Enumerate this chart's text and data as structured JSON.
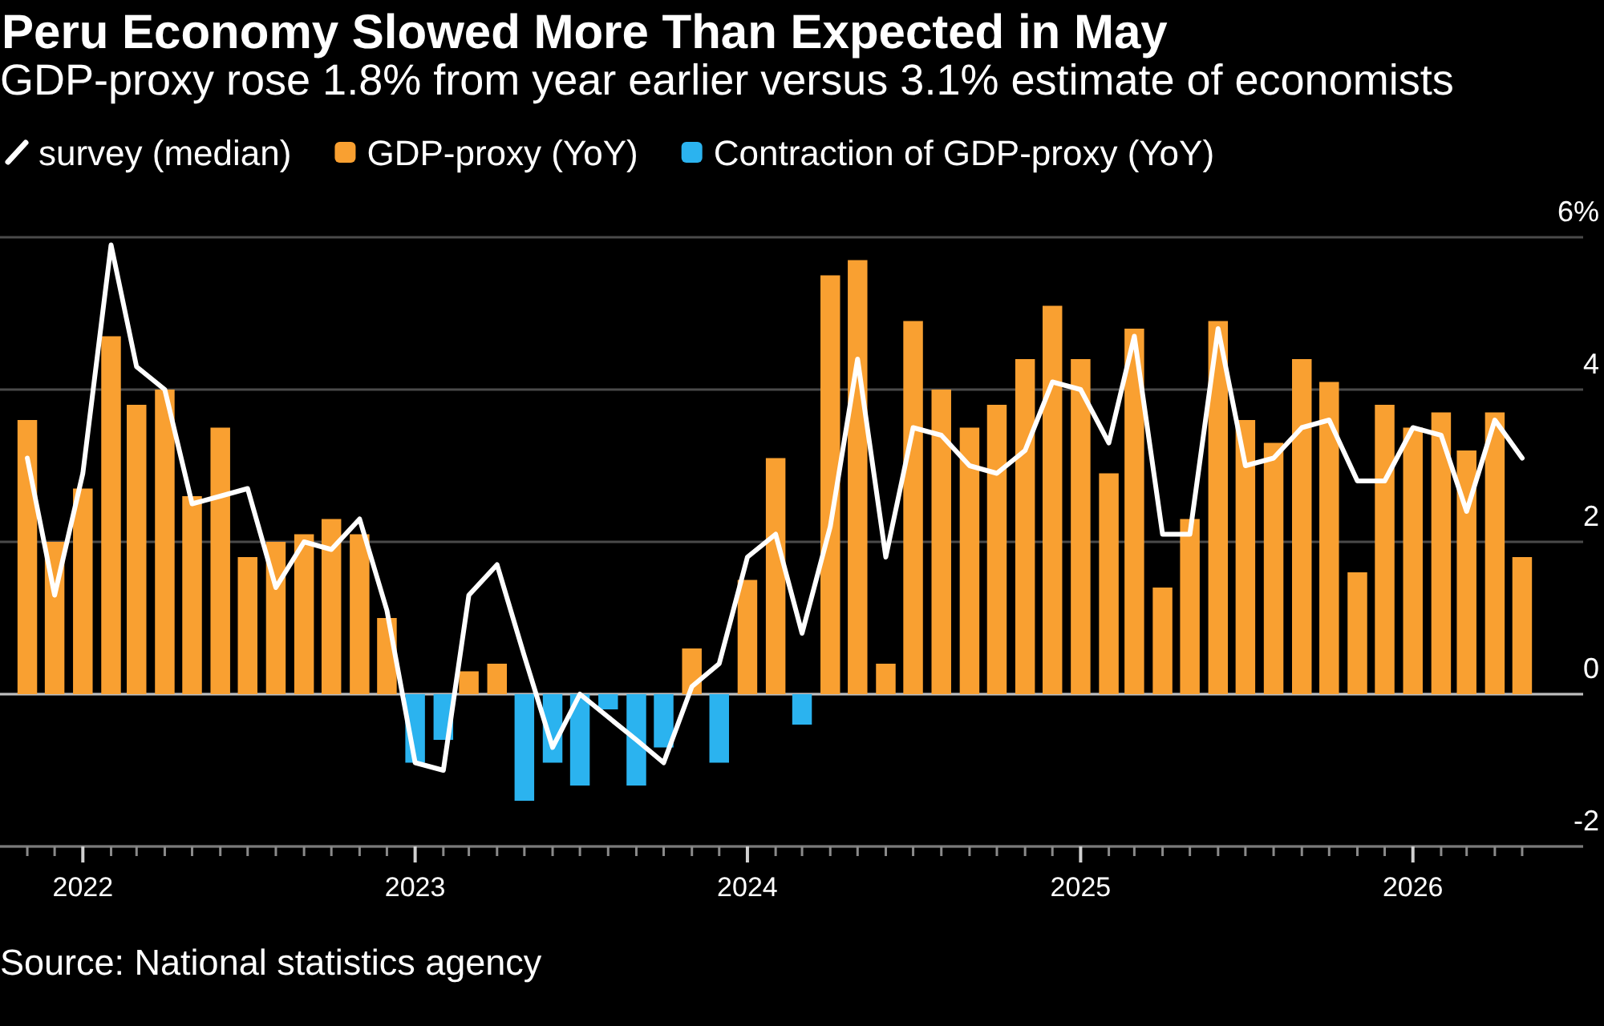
{
  "chart_data": {
    "type": "bar",
    "title": "Peru Economy Slowed More Than Expected in May",
    "subtitle": "GDP-proxy rose 1.8% from year earlier versus 3.1% estimate of economists",
    "annotations": [
      "Source: National statistics agency"
    ],
    "x": [
      "2021-11",
      "2021-12",
      "2022-01",
      "2022-02",
      "2022-03",
      "2022-04",
      "2022-05",
      "2022-06",
      "2022-07",
      "2022-08",
      "2022-09",
      "2022-10",
      "2022-11",
      "2022-12",
      "2023-01",
      "2023-02",
      "2023-03",
      "2023-04",
      "2023-05",
      "2023-06",
      "2023-07",
      "2023-08",
      "2023-09",
      "2023-10",
      "2023-11",
      "2023-12",
      "2024-01",
      "2024-02",
      "2024-03",
      "2024-04",
      "2024-05",
      "2024-06",
      "2024-07",
      "2024-08",
      "2024-09",
      "2024-10",
      "2024-11",
      "2024-12",
      "2025-01",
      "2025-02",
      "2025-03",
      "2025-04",
      "2025-05",
      "2025-06",
      "2025-07",
      "2025-08",
      "2025-09",
      "2025-10",
      "2025-11",
      "2025-12",
      "2026-01",
      "2026-02",
      "2026-03",
      "2026-04",
      "2026-05"
    ],
    "xlim": [
      "2021-10-02",
      "2026-07-07"
    ],
    "xticks": [
      {
        "value": "2021-11",
        "label": null
      },
      {
        "value": "2021-12",
        "label": null
      },
      {
        "value": "2022-01",
        "label": "2022"
      },
      {
        "value": "2022-02",
        "label": null
      },
      {
        "value": "2022-03",
        "label": null
      },
      {
        "value": "2022-04",
        "label": null
      },
      {
        "value": "2022-05",
        "label": null
      },
      {
        "value": "2022-06",
        "label": null
      },
      {
        "value": "2022-07",
        "label": null
      },
      {
        "value": "2022-08",
        "label": null
      },
      {
        "value": "2022-09",
        "label": null
      },
      {
        "value": "2022-10",
        "label": null
      },
      {
        "value": "2022-11",
        "label": null
      },
      {
        "value": "2022-12",
        "label": null
      },
      {
        "value": "2023-01",
        "label": "2023"
      },
      {
        "value": "2023-02",
        "label": null
      },
      {
        "value": "2023-03",
        "label": null
      },
      {
        "value": "2023-04",
        "label": null
      },
      {
        "value": "2023-05",
        "label": null
      },
      {
        "value": "2023-06",
        "label": null
      },
      {
        "value": "2023-07",
        "label": null
      },
      {
        "value": "2023-08",
        "label": null
      },
      {
        "value": "2023-09",
        "label": null
      },
      {
        "value": "2023-10",
        "label": null
      },
      {
        "value": "2023-11",
        "label": null
      },
      {
        "value": "2023-12",
        "label": null
      },
      {
        "value": "2024-01",
        "label": "2024"
      },
      {
        "value": "2024-02",
        "label": null
      },
      {
        "value": "2024-03",
        "label": null
      },
      {
        "value": "2024-04",
        "label": null
      },
      {
        "value": "2024-05",
        "label": null
      },
      {
        "value": "2024-06",
        "label": null
      },
      {
        "value": "2024-07",
        "label": null
      },
      {
        "value": "2024-08",
        "label": null
      },
      {
        "value": "2024-09",
        "label": null
      },
      {
        "value": "2024-10",
        "label": null
      },
      {
        "value": "2024-11",
        "label": null
      },
      {
        "value": "2024-12",
        "label": null
      },
      {
        "value": "2025-01",
        "label": "2025"
      },
      {
        "value": "2025-02",
        "label": null
      },
      {
        "value": "2025-03",
        "label": null
      },
      {
        "value": "2025-04",
        "label": null
      },
      {
        "value": "2025-05",
        "label": null
      },
      {
        "value": "2025-06",
        "label": null
      },
      {
        "value": "2025-07",
        "label": null
      },
      {
        "value": "2025-08",
        "label": null
      },
      {
        "value": "2025-09",
        "label": null
      },
      {
        "value": "2025-10",
        "label": null
      },
      {
        "value": "2025-11",
        "label": null
      },
      {
        "value": "2025-12",
        "label": null
      },
      {
        "value": "2026-01",
        "label": "2026"
      },
      {
        "value": "2026-02",
        "label": null
      },
      {
        "value": "2026-03",
        "label": null
      },
      {
        "value": "2026-04",
        "label": null
      },
      {
        "value": "2026-05",
        "label": null
      }
    ],
    "ylim": [
      -2,
      6
    ],
    "yticks": [
      -2,
      0,
      2,
      4,
      {
        "value": 6,
        "label": "6%"
      }
    ],
    "grid": "y",
    "legend": "top left",
    "stacked": true,
    "ref_lines": [
      {
        "axis": "y",
        "value": 0,
        "color": "#bfbfbf"
      }
    ],
    "series": [
      {
        "name": "survey (median)",
        "type": "line",
        "color": "#ffffff",
        "values": [
          3.1,
          1.3,
          2.9,
          5.9,
          4.3,
          4.0,
          2.5,
          2.6,
          2.7,
          1.4,
          2.0,
          1.9,
          2.3,
          1.1,
          -0.9,
          -1.0,
          1.3,
          1.7,
          0.5,
          -0.7,
          0.0,
          -0.3,
          -0.6,
          -0.9,
          0.1,
          0.4,
          1.8,
          2.1,
          0.8,
          2.2,
          4.4,
          1.8,
          3.5,
          3.4,
          3.0,
          2.9,
          3.2,
          4.1,
          4.0,
          3.3,
          4.7,
          2.1,
          2.1,
          4.8,
          3.0,
          3.1,
          3.5,
          3.6,
          2.8,
          2.8,
          3.5,
          3.4,
          2.4,
          3.6,
          3.1
        ]
      },
      {
        "name": "GDP-proxy (YoY)",
        "color": "#f9a031",
        "values": [
          3.6,
          2.0,
          2.7,
          4.7,
          3.8,
          4.0,
          2.6,
          3.5,
          1.8,
          2.0,
          2.1,
          2.3,
          2.1,
          1.0,
          null,
          null,
          0.3,
          0.4,
          null,
          null,
          null,
          null,
          null,
          null,
          0.6,
          null,
          1.5,
          3.1,
          null,
          5.5,
          5.7,
          0.4,
          4.9,
          4.0,
          3.5,
          3.8,
          4.4,
          5.1,
          4.4,
          2.9,
          4.8,
          1.4,
          2.3,
          4.9,
          3.6,
          3.3,
          4.4,
          4.1,
          1.6,
          3.8,
          3.5,
          3.7,
          3.2,
          3.7,
          1.8
        ]
      },
      {
        "name": "Contraction of GDP-proxy (YoY)",
        "color": "#2bb3ef",
        "values": [
          null,
          null,
          null,
          null,
          null,
          null,
          null,
          null,
          null,
          null,
          null,
          null,
          null,
          null,
          -0.9,
          -0.6,
          null,
          null,
          -1.4,
          -0.9,
          -1.2,
          -0.2,
          -1.2,
          -0.7,
          null,
          -0.9,
          null,
          null,
          -0.4,
          null,
          null,
          null,
          null,
          null,
          null,
          null,
          null,
          null,
          null,
          null,
          null,
          null,
          null,
          null,
          null,
          null,
          null,
          null,
          null,
          null,
          null,
          null,
          null,
          null,
          null
        ]
      }
    ]
  }
}
